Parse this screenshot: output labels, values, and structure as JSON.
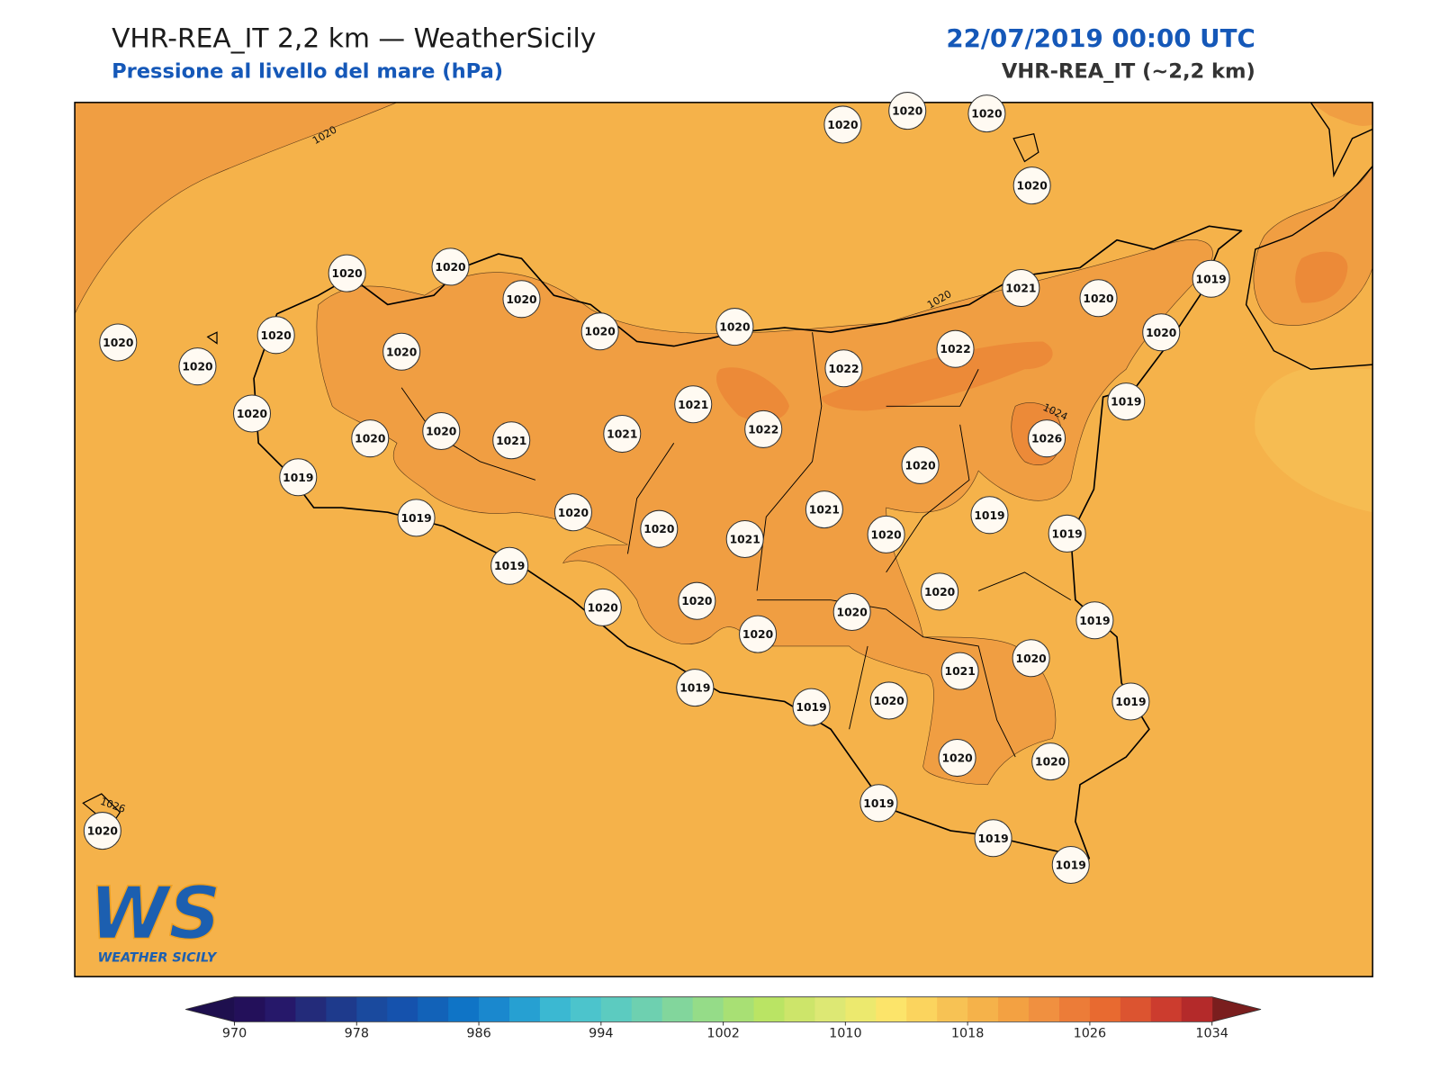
{
  "title": "VHR-REA_IT 2,2 km — WeatherSicily",
  "subtitle": "Pressione al livello del mare (hPa)",
  "date_label": "22/07/2019 00:00 UTC",
  "model_label": "VHR-REA_IT (~2,2 km)",
  "logo": {
    "mark": "WS",
    "name": "WEATHER SICILY"
  },
  "contour_labels": [
    1020,
    1020,
    1024,
    1026
  ],
  "stations": [
    1020,
    1020,
    1020,
    1020,
    1020,
    1020,
    1020,
    1020,
    1020,
    1020,
    1020,
    1020,
    1020,
    1021,
    1020,
    1019,
    1020,
    1020,
    1020,
    1020,
    1021,
    1021,
    1021,
    1022,
    1022,
    1022,
    1019,
    1026,
    1019,
    1019,
    1020,
    1020,
    1021,
    1021,
    1020,
    1020,
    1019,
    1019,
    1019,
    1020,
    1020,
    1020,
    1020,
    1020,
    1019,
    1021,
    1020,
    1019,
    1019,
    1020,
    1019,
    1020,
    1020,
    1019,
    1019,
    1019,
    1020
  ],
  "colorbar": {
    "range": [
      970,
      1034
    ],
    "ticks": [
      970,
      978,
      986,
      994,
      1002,
      1010,
      1018,
      1026,
      1034
    ],
    "colors": [
      "#23105a",
      "#26186a",
      "#232b7a",
      "#1e3a8c",
      "#1a4a9e",
      "#1552ad",
      "#1262b8",
      "#0f74c6",
      "#1a88ce",
      "#26a0d2",
      "#3bb8d2",
      "#4cc4cc",
      "#5ccbc0",
      "#6ed0b0",
      "#82d69c",
      "#95dc88",
      "#a8e074",
      "#bae464",
      "#cde56a",
      "#dde874",
      "#ece96e",
      "#fce46a",
      "#fbd45e",
      "#f7c254",
      "#f5b24a",
      "#f3a142",
      "#f09040",
      "#ec7c38",
      "#e86a30",
      "#dc5430",
      "#cc3c2e",
      "#b42a2a"
    ],
    "under_color": "#1e0f4e",
    "over_color": "#7a1e1e"
  }
}
